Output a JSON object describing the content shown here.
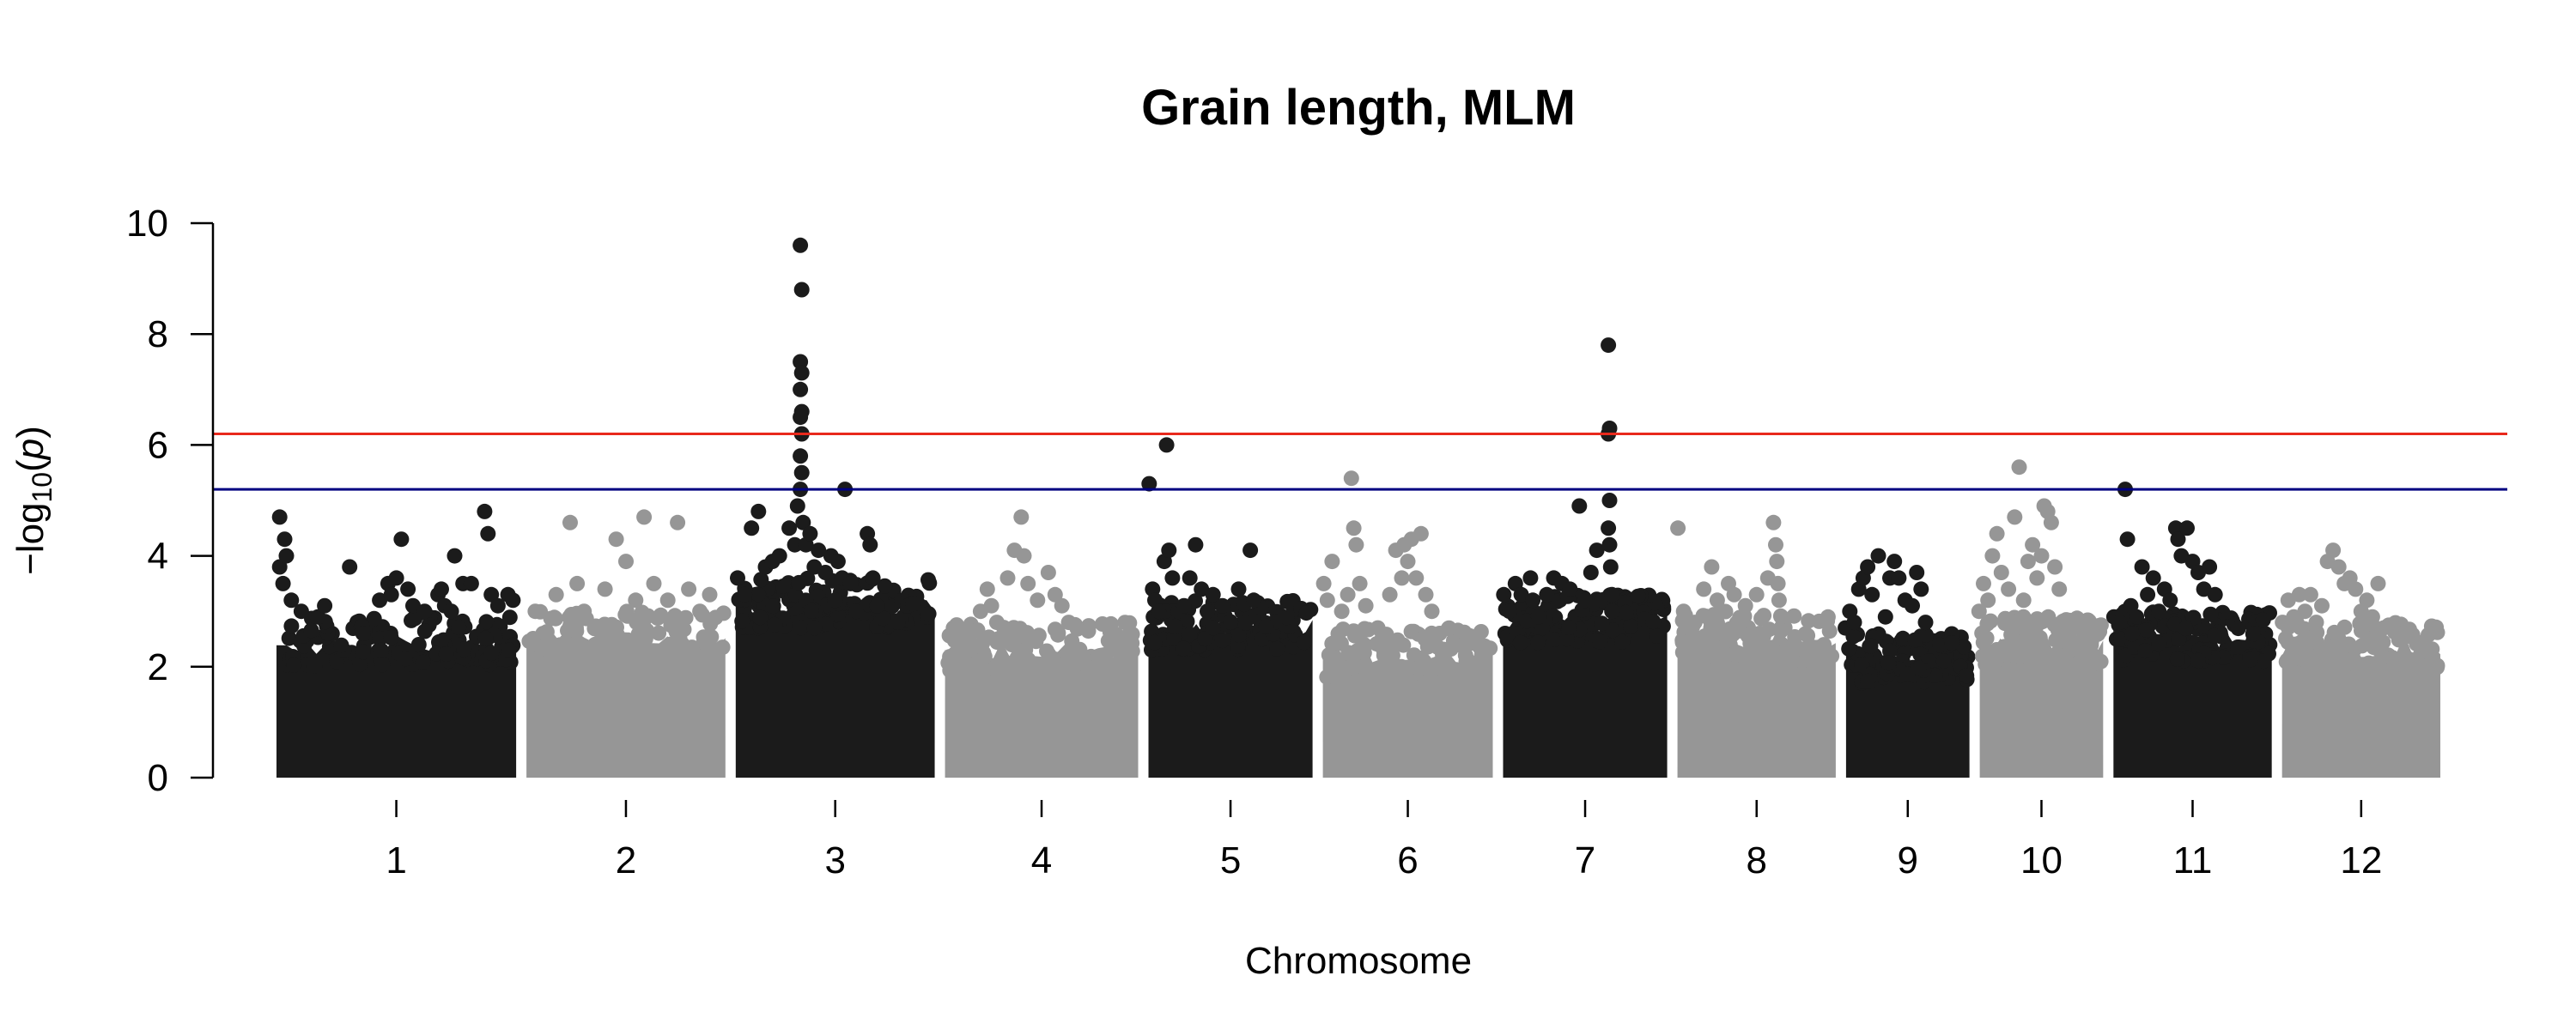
{
  "chart_data": {
    "type": "scatter",
    "subtype": "manhattan",
    "title": "Grain length, MLM",
    "xlabel": "Chromosome",
    "ylabel": {
      "prefix": "−log",
      "subscript": "10",
      "argument_open": "(",
      "argument": "p",
      "argument_close": ")"
    },
    "ylim": [
      0,
      10
    ],
    "yticks": [
      "0",
      "2",
      "4",
      "6",
      "8",
      "10"
    ],
    "grid": false,
    "legend": "none",
    "colors": {
      "odd_chromosomes": "#1b1b1b",
      "even_chromosomes": "#969696",
      "suggestive_line": "#000080",
      "significance_line": "#e8291c"
    },
    "thresholds": [
      {
        "kind": "significance",
        "value": 6.2,
        "color": "#e8291c"
      },
      {
        "kind": "suggestive",
        "value": 5.2,
        "color": "#000080"
      }
    ],
    "chromosomes": [
      {
        "label": "1",
        "relative_length": 43,
        "base_top": 2.4,
        "points": [
          [
            0.05,
            4.7
          ],
          [
            0.08,
            4.3
          ],
          [
            0.05,
            3.8
          ],
          [
            0.07,
            3.5
          ],
          [
            0.09,
            4.0
          ],
          [
            0.12,
            3.2
          ],
          [
            0.18,
            3.0
          ],
          [
            0.28,
            2.9
          ],
          [
            0.32,
            3.1
          ],
          [
            0.47,
            3.8
          ],
          [
            0.55,
            2.6
          ],
          [
            0.65,
            3.2
          ],
          [
            0.7,
            3.5
          ],
          [
            0.72,
            3.3
          ],
          [
            0.75,
            3.6
          ],
          [
            0.78,
            4.3
          ],
          [
            0.82,
            3.4
          ],
          [
            0.85,
            3.1
          ],
          [
            0.92,
            3.0
          ],
          [
            1.0,
            3.3
          ],
          [
            1.02,
            3.4
          ],
          [
            1.04,
            3.1
          ],
          [
            1.08,
            3.0
          ],
          [
            1.1,
            4.0
          ],
          [
            1.15,
            3.5
          ],
          [
            1.2,
            3.5
          ],
          [
            1.28,
            4.8
          ],
          [
            1.3,
            4.4
          ],
          [
            1.32,
            3.3
          ],
          [
            1.36,
            3.1
          ],
          [
            1.42,
            3.3
          ],
          [
            1.45,
            3.2
          ]
        ]
      },
      {
        "label": "2",
        "relative_length": 36,
        "base_top": 2.5,
        "points": [
          [
            0.1,
            3.0
          ],
          [
            0.25,
            3.3
          ],
          [
            0.35,
            4.6
          ],
          [
            0.4,
            3.5
          ],
          [
            0.45,
            3.0
          ],
          [
            0.6,
            3.4
          ],
          [
            0.68,
            4.3
          ],
          [
            0.75,
            3.9
          ],
          [
            0.82,
            3.2
          ],
          [
            0.88,
            4.7
          ],
          [
            0.95,
            3.5
          ],
          [
            1.05,
            3.2
          ],
          [
            1.12,
            4.6
          ],
          [
            1.2,
            3.4
          ],
          [
            1.28,
            3.0
          ],
          [
            1.35,
            3.3
          ]
        ]
      },
      {
        "label": "3",
        "relative_length": 36,
        "base_top": 3.1,
        "points": [
          [
            0.05,
            3.6
          ],
          [
            0.1,
            3.3
          ],
          [
            0.15,
            4.5
          ],
          [
            0.2,
            4.8
          ],
          [
            0.25,
            3.8
          ],
          [
            0.3,
            3.9
          ],
          [
            0.35,
            4.0
          ],
          [
            0.42,
            4.5
          ],
          [
            0.46,
            4.2
          ],
          [
            0.48,
            4.9
          ],
          [
            0.5,
            9.6
          ],
          [
            0.51,
            8.8
          ],
          [
            0.5,
            7.5
          ],
          [
            0.51,
            7.3
          ],
          [
            0.5,
            7.0
          ],
          [
            0.51,
            6.6
          ],
          [
            0.5,
            6.5
          ],
          [
            0.51,
            6.2
          ],
          [
            0.5,
            5.8
          ],
          [
            0.51,
            5.5
          ],
          [
            0.5,
            5.2
          ],
          [
            0.52,
            4.6
          ],
          [
            0.54,
            4.2
          ],
          [
            0.57,
            4.4
          ],
          [
            0.6,
            3.8
          ],
          [
            0.63,
            4.1
          ],
          [
            0.68,
            3.7
          ],
          [
            0.72,
            4.0
          ],
          [
            0.77,
            3.9
          ],
          [
            0.8,
            3.6
          ],
          [
            0.82,
            5.2
          ],
          [
            0.86,
            3.5
          ],
          [
            0.9,
            3.0
          ],
          [
            0.98,
            4.4
          ],
          [
            1.0,
            4.2
          ],
          [
            1.02,
            3.6
          ],
          [
            1.05,
            3.1
          ]
        ]
      },
      {
        "label": "4",
        "relative_length": 35,
        "base_top": 2.3,
        "points": [
          [
            0.1,
            2.7
          ],
          [
            0.2,
            2.5
          ],
          [
            0.3,
            3.0
          ],
          [
            0.35,
            3.4
          ],
          [
            0.38,
            3.1
          ],
          [
            0.42,
            2.8
          ],
          [
            0.5,
            3.6
          ],
          [
            0.55,
            4.1
          ],
          [
            0.6,
            4.7
          ],
          [
            0.62,
            4.0
          ],
          [
            0.65,
            3.5
          ],
          [
            0.72,
            3.2
          ],
          [
            0.8,
            3.7
          ],
          [
            0.85,
            3.3
          ],
          [
            0.9,
            3.1
          ],
          [
            0.95,
            2.8
          ]
        ]
      },
      {
        "label": "5",
        "relative_length": 30,
        "base_top": 2.7,
        "points": [
          [
            0.05,
            5.3
          ],
          [
            0.08,
            3.4
          ],
          [
            0.1,
            3.2
          ],
          [
            0.13,
            3.0
          ],
          [
            0.18,
            3.9
          ],
          [
            0.2,
            6.0
          ],
          [
            0.22,
            4.1
          ],
          [
            0.25,
            3.6
          ],
          [
            0.3,
            3.0
          ],
          [
            0.35,
            3.1
          ],
          [
            0.4,
            3.6
          ],
          [
            0.45,
            4.2
          ],
          [
            0.5,
            3.4
          ],
          [
            0.55,
            3.0
          ],
          [
            0.6,
            3.3
          ],
          [
            0.68,
            3.1
          ],
          [
            0.75,
            2.8
          ],
          [
            0.82,
            3.4
          ],
          [
            0.92,
            4.1
          ],
          [
            0.95,
            3.2
          ]
        ]
      },
      {
        "label": "6",
        "relative_length": 31,
        "base_top": 2.2,
        "points": [
          [
            0.05,
            3.5
          ],
          [
            0.08,
            3.2
          ],
          [
            0.12,
            3.9
          ],
          [
            0.2,
            3.0
          ],
          [
            0.25,
            3.3
          ],
          [
            0.28,
            5.4
          ],
          [
            0.3,
            4.5
          ],
          [
            0.32,
            4.2
          ],
          [
            0.35,
            3.5
          ],
          [
            0.4,
            3.1
          ],
          [
            0.5,
            2.7
          ],
          [
            0.6,
            3.3
          ],
          [
            0.65,
            4.1
          ],
          [
            0.7,
            3.6
          ],
          [
            0.72,
            4.2
          ],
          [
            0.75,
            3.9
          ],
          [
            0.78,
            4.3
          ],
          [
            0.82,
            3.6
          ],
          [
            0.86,
            4.4
          ],
          [
            0.9,
            3.3
          ],
          [
            0.95,
            3.0
          ]
        ]
      },
      {
        "label": "7",
        "relative_length": 30,
        "base_top": 2.8,
        "points": [
          [
            0.05,
            3.3
          ],
          [
            0.1,
            3.0
          ],
          [
            0.15,
            3.5
          ],
          [
            0.2,
            3.3
          ],
          [
            0.28,
            3.6
          ],
          [
            0.3,
            3.2
          ],
          [
            0.35,
            2.9
          ],
          [
            0.42,
            3.3
          ],
          [
            0.48,
            3.6
          ],
          [
            0.55,
            3.5
          ],
          [
            0.62,
            3.4
          ],
          [
            0.7,
            4.9
          ],
          [
            0.75,
            3.2
          ],
          [
            0.8,
            3.7
          ],
          [
            0.85,
            4.1
          ],
          [
            0.9,
            3.2
          ],
          [
            0.95,
            7.8
          ],
          [
            0.96,
            6.3
          ],
          [
            0.95,
            6.2
          ],
          [
            0.96,
            5.0
          ],
          [
            0.95,
            4.5
          ],
          [
            0.96,
            4.2
          ],
          [
            0.97,
            3.8
          ],
          [
            0.98,
            3.3
          ],
          [
            0.98,
            3.0
          ]
        ]
      },
      {
        "label": "8",
        "relative_length": 29,
        "base_top": 2.5,
        "points": [
          [
            0.05,
            4.5
          ],
          [
            0.1,
            3.0
          ],
          [
            0.2,
            2.8
          ],
          [
            0.28,
            3.4
          ],
          [
            0.35,
            3.8
          ],
          [
            0.4,
            3.2
          ],
          [
            0.45,
            3.0
          ],
          [
            0.5,
            3.5
          ],
          [
            0.55,
            3.3
          ],
          [
            0.65,
            3.1
          ],
          [
            0.75,
            3.3
          ],
          [
            0.85,
            3.6
          ],
          [
            0.9,
            4.6
          ],
          [
            0.92,
            4.2
          ],
          [
            0.93,
            3.9
          ],
          [
            0.94,
            3.5
          ],
          [
            0.95,
            3.2
          ],
          [
            0.97,
            2.9
          ]
        ]
      },
      {
        "label": "9",
        "relative_length": 23,
        "base_top": 2.1,
        "points": [
          [
            0.05,
            2.7
          ],
          [
            0.1,
            3.0
          ],
          [
            0.15,
            2.8
          ],
          [
            0.2,
            3.4
          ],
          [
            0.25,
            3.6
          ],
          [
            0.3,
            3.8
          ],
          [
            0.35,
            3.3
          ],
          [
            0.42,
            4.0
          ],
          [
            0.5,
            2.9
          ],
          [
            0.55,
            3.6
          ],
          [
            0.6,
            3.9
          ],
          [
            0.65,
            3.6
          ],
          [
            0.72,
            3.2
          ],
          [
            0.8,
            3.1
          ],
          [
            0.85,
            3.7
          ],
          [
            0.9,
            3.4
          ],
          [
            0.95,
            2.8
          ]
        ]
      },
      {
        "label": "10",
        "relative_length": 23,
        "base_top": 2.4,
        "points": [
          [
            0.05,
            3.0
          ],
          [
            0.1,
            3.5
          ],
          [
            0.15,
            3.2
          ],
          [
            0.2,
            4.0
          ],
          [
            0.25,
            4.4
          ],
          [
            0.3,
            3.7
          ],
          [
            0.38,
            3.4
          ],
          [
            0.45,
            4.7
          ],
          [
            0.5,
            5.6
          ],
          [
            0.55,
            3.2
          ],
          [
            0.6,
            3.9
          ],
          [
            0.65,
            4.2
          ],
          [
            0.7,
            3.6
          ],
          [
            0.75,
            4.0
          ],
          [
            0.78,
            4.9
          ],
          [
            0.82,
            4.8
          ],
          [
            0.86,
            4.6
          ],
          [
            0.9,
            3.8
          ],
          [
            0.95,
            3.4
          ]
        ]
      },
      {
        "label": "11",
        "relative_length": 29,
        "base_top": 2.5,
        "points": [
          [
            0.05,
            2.9
          ],
          [
            0.1,
            2.8
          ],
          [
            0.15,
            5.2
          ],
          [
            0.17,
            4.3
          ],
          [
            0.2,
            3.1
          ],
          [
            0.25,
            2.9
          ],
          [
            0.3,
            3.8
          ],
          [
            0.35,
            3.3
          ],
          [
            0.4,
            3.6
          ],
          [
            0.45,
            3.0
          ],
          [
            0.5,
            3.4
          ],
          [
            0.55,
            3.2
          ],
          [
            0.6,
            4.5
          ],
          [
            0.62,
            4.3
          ],
          [
            0.65,
            4.0
          ],
          [
            0.7,
            4.5
          ],
          [
            0.75,
            3.9
          ],
          [
            0.8,
            3.7
          ],
          [
            0.85,
            3.4
          ],
          [
            0.9,
            3.8
          ],
          [
            0.95,
            3.3
          ]
        ]
      },
      {
        "label": "12",
        "relative_length": 29,
        "base_top": 2.3,
        "points": [
          [
            0.05,
            2.8
          ],
          [
            0.1,
            3.2
          ],
          [
            0.15,
            2.9
          ],
          [
            0.2,
            3.3
          ],
          [
            0.25,
            3.0
          ],
          [
            0.3,
            3.3
          ],
          [
            0.35,
            2.8
          ],
          [
            0.4,
            3.1
          ],
          [
            0.45,
            3.9
          ],
          [
            0.5,
            4.1
          ],
          [
            0.55,
            3.8
          ],
          [
            0.6,
            3.5
          ],
          [
            0.65,
            3.6
          ],
          [
            0.7,
            3.4
          ],
          [
            0.75,
            3.0
          ],
          [
            0.8,
            3.2
          ],
          [
            0.85,
            2.9
          ],
          [
            0.9,
            3.5
          ],
          [
            0.95,
            2.7
          ]
        ]
      }
    ]
  }
}
